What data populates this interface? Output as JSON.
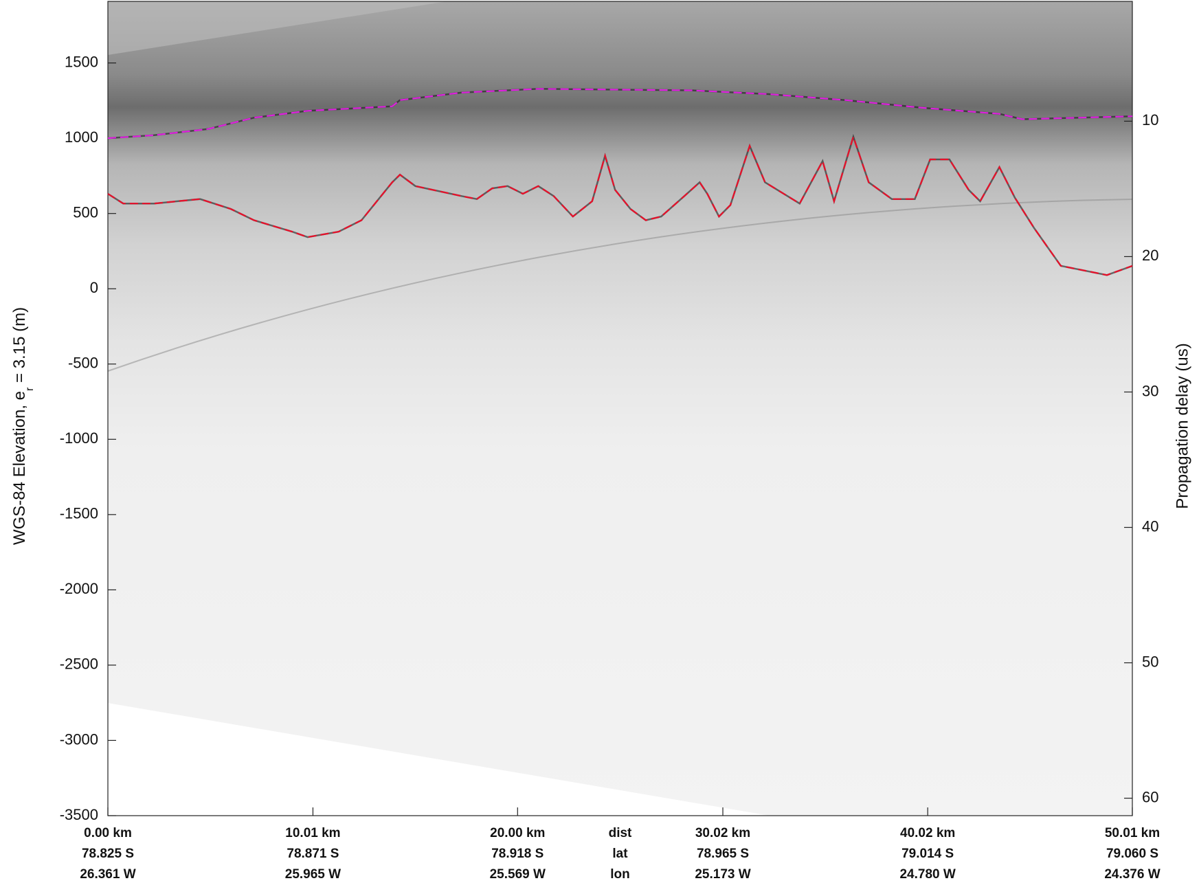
{
  "chart_data": {
    "type": "line",
    "y_label": "WGS-84 Elevation, e",
    "y_label_sub": "r",
    "y_label_rest": " = 3.15 (m)",
    "y2_label": "Propagation delay (us)",
    "xlim": [
      0,
      50.01
    ],
    "ylim": [
      -3500,
      1909
    ],
    "y2lim": [
      1.15,
      61.29
    ],
    "yticks": [
      1500,
      1000,
      500,
      0,
      -500,
      -1000,
      -1500,
      -2000,
      -2500,
      -3000,
      -3500
    ],
    "y2ticks": [
      10,
      20,
      30,
      40,
      50,
      60
    ],
    "xticks": [
      {
        "value": 0,
        "label": "0.00 km"
      },
      {
        "value": 10.01,
        "label": "10.01 km"
      },
      {
        "value": 20.0,
        "label": "20.00 km"
      },
      {
        "value": 30.02,
        "label": "30.02 km"
      },
      {
        "value": 40.02,
        "label": "40.02 km"
      },
      {
        "value": 50.01,
        "label": "50.01 km"
      }
    ],
    "lat_labels": [
      "78.825 S",
      "78.871 S",
      "78.918 S",
      "78.965 S",
      "79.014 S",
      "79.060 S"
    ],
    "lon_labels": [
      "26.361 W",
      "25.965 W",
      "25.569 W",
      "25.173 W",
      "24.780 W",
      "24.376 W"
    ],
    "row_names": [
      "dist",
      "lat",
      "lon"
    ],
    "series": [
      {
        "color": "#e8102a",
        "style": "dashed",
        "x": [
          0.0,
          0.75,
          2.25,
          4.5,
          6.0,
          7.13,
          9.0,
          9.75,
          11.26,
          12.38,
          13.88,
          14.26,
          15.01,
          17.26,
          18.01,
          18.76,
          19.51,
          20.26,
          21.01,
          21.76,
          22.7,
          23.64,
          24.27,
          24.76,
          25.51,
          26.26,
          27.01,
          28.14,
          28.89,
          29.26,
          29.83,
          30.39,
          31.33,
          32.08,
          33.77,
          34.89,
          35.45,
          36.39,
          37.14,
          38.27,
          39.39,
          40.14,
          41.08,
          42.02,
          42.58,
          43.52,
          44.27,
          45.21,
          46.52,
          48.77,
          50.01
        ],
        "values": [
          631,
          566,
          566,
          596,
          530,
          455,
          379,
          343,
          379,
          455,
          707,
          758,
          682,
          616,
          596,
          667,
          682,
          631,
          682,
          616,
          480,
          581,
          884,
          657,
          530,
          455,
          480,
          616,
          707,
          631,
          480,
          556,
          949,
          707,
          566,
          848,
          581,
          1010,
          707,
          596,
          596,
          859,
          859,
          657,
          581,
          808,
          606,
          404,
          152,
          91,
          152
        ]
      },
      {
        "color": "#e020e0",
        "style": "dashed",
        "x": [
          0,
          2.25,
          4.88,
          7.13,
          9.75,
          13.88,
          14.26,
          17.26,
          21.01,
          28.51,
          32.26,
          36.01,
          39.77,
          43.52,
          44.64,
          50.01
        ],
        "values": [
          1000,
          1020,
          1061,
          1136,
          1182,
          1212,
          1253,
          1303,
          1328,
          1318,
          1293,
          1253,
          1202,
          1162,
          1126,
          1146
        ]
      }
    ]
  }
}
